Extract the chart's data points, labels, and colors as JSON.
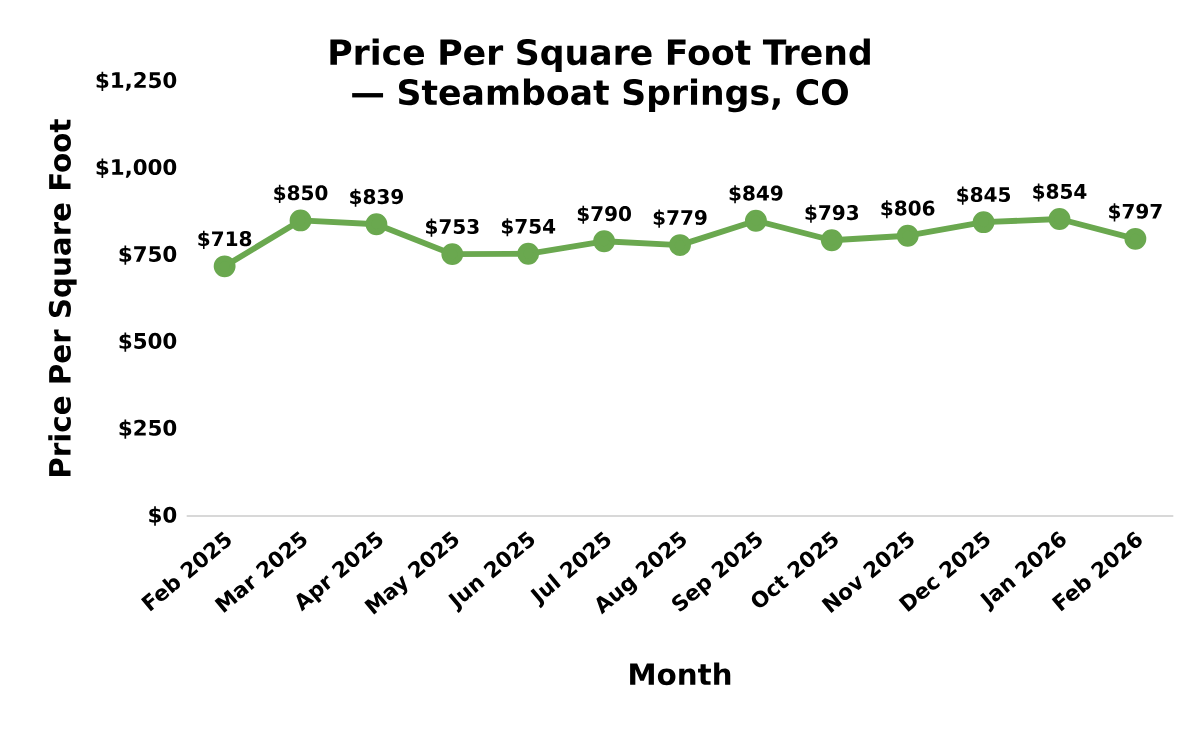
{
  "chart_data": {
    "type": "line",
    "title": "Price Per Square Foot Trend — Steamboat Springs, CO",
    "xlabel": "Month",
    "ylabel": "Price Per Square Foot",
    "categories": [
      "Feb 2025",
      "Mar 2025",
      "Apr 2025",
      "May 2025",
      "Jun 2025",
      "Jul 2025",
      "Aug 2025",
      "Sep 2025",
      "Oct 2025",
      "Nov 2025",
      "Dec 2025",
      "Jan 2026",
      "Feb 2026"
    ],
    "series": [
      {
        "color": "#6aa84f",
        "values": [
          718,
          850,
          839,
          753,
          754,
          790,
          779,
          849,
          793,
          806,
          845,
          854,
          797
        ],
        "value_labels": [
          "$718",
          "$850",
          "$839",
          "$753",
          "$754",
          "$790",
          "$779",
          "$849",
          "$793",
          "$806",
          "$845",
          "$854",
          "$797"
        ]
      }
    ],
    "ylim": [
      0,
      1250
    ],
    "yticks": [
      {
        "value": 0,
        "label": "$0"
      },
      {
        "value": 250,
        "label": "$250"
      },
      {
        "value": 500,
        "label": "$500"
      },
      {
        "value": 750,
        "label": "$750"
      },
      {
        "value": 1000,
        "label": "$1,000"
      },
      {
        "value": 1250,
        "label": "$1,250"
      }
    ],
    "marker": "circle",
    "line_style": "solid",
    "grid": false
  }
}
